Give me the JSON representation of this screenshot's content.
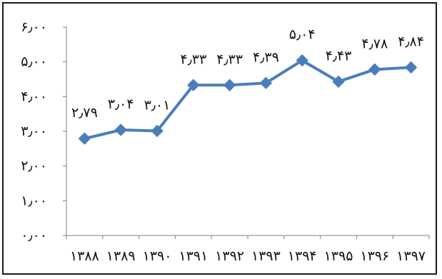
{
  "chart_data": {
    "type": "line",
    "title": "",
    "xlabel": "",
    "ylabel": "",
    "categories": [
      "۱۳۸۸",
      "۱۳۸۹",
      "۱۳۹۰",
      "۱۳۹۱",
      "۱۳۹۲",
      "۱۳۹۳",
      "۱۳۹۴",
      "۱۳۹۵",
      "۱۳۹۶",
      "۱۳۹۷"
    ],
    "series": [
      {
        "values": [
          2.79,
          3.04,
          3.01,
          4.33,
          4.33,
          4.39,
          5.04,
          4.43,
          4.78,
          4.84
        ],
        "labels": [
          "۲٫۷۹",
          "۳٫۰۴",
          "۳٫۰۱",
          "۴٫۳۳",
          "۴٫۳۳",
          "۴٫۳۹",
          "۵٫۰۴",
          "۴٫۴۳",
          "۴٫۷۸",
          "۴٫۸۴"
        ],
        "color": "#4a7ebb",
        "marker": "diamond"
      }
    ],
    "ylim": [
      0,
      6
    ],
    "yticks": [
      0,
      1,
      2,
      3,
      4,
      5,
      6
    ],
    "ytick_labels": [
      "۰٫۰۰",
      "۱٫۰۰",
      "۲٫۰۰",
      "۳٫۰۰",
      "۴٫۰۰",
      "۵٫۰۰",
      "۶٫۰۰"
    ],
    "grid": false,
    "legend": "none"
  }
}
